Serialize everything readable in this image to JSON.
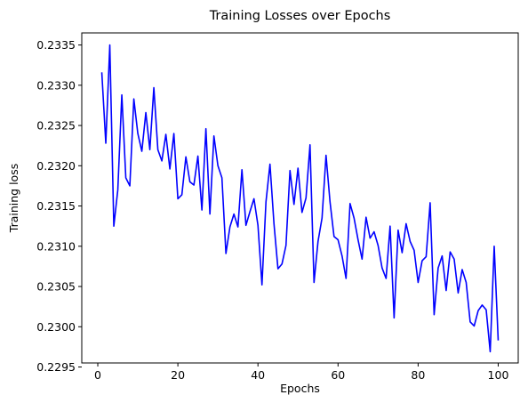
{
  "chart_data": {
    "type": "line",
    "title": "Training Losses over Epochs",
    "xlabel": "Epochs",
    "ylabel": "Training loss",
    "xlim": [
      -4,
      105
    ],
    "ylim": [
      0.22955,
      0.23365
    ],
    "xticks": [
      0,
      20,
      40,
      60,
      80,
      100
    ],
    "xtick_labels": [
      "0",
      "20",
      "40",
      "60",
      "80",
      "100"
    ],
    "yticks": [
      0.2295,
      0.23,
      0.2305,
      0.231,
      0.2315,
      0.232,
      0.2325,
      0.233,
      0.2335
    ],
    "ytick_labels": [
      "0.2295",
      "0.2300",
      "0.2305",
      "0.2310",
      "0.2315",
      "0.2320",
      "0.2325",
      "0.2330",
      "0.2335"
    ],
    "grid": false,
    "series": [
      {
        "name": "Training loss",
        "color": "#0000ff",
        "x": [
          1,
          2,
          3,
          4,
          5,
          6,
          7,
          8,
          9,
          10,
          11,
          12,
          13,
          14,
          15,
          16,
          17,
          18,
          19,
          20,
          21,
          22,
          23,
          24,
          25,
          26,
          27,
          28,
          29,
          30,
          31,
          32,
          33,
          34,
          35,
          36,
          37,
          38,
          39,
          40,
          41,
          42,
          43,
          44,
          45,
          46,
          47,
          48,
          49,
          50,
          51,
          52,
          53,
          54,
          55,
          56,
          57,
          58,
          59,
          60,
          61,
          62,
          63,
          64,
          65,
          66,
          67,
          68,
          69,
          70,
          71,
          72,
          73,
          74,
          75,
          76,
          77,
          78,
          79,
          80,
          81,
          82,
          83,
          84,
          85,
          86,
          87,
          88,
          89,
          90,
          91,
          92,
          93,
          94,
          95,
          96,
          97,
          98,
          99,
          100
        ],
        "values": [
          0.23316,
          0.23228,
          0.2335,
          0.23125,
          0.2317,
          0.23288,
          0.23185,
          0.23175,
          0.23283,
          0.2324,
          0.23218,
          0.23266,
          0.2322,
          0.23297,
          0.2322,
          0.23206,
          0.23239,
          0.23196,
          0.2324,
          0.23159,
          0.23164,
          0.23211,
          0.2318,
          0.23176,
          0.23212,
          0.23145,
          0.23246,
          0.2314,
          0.23237,
          0.232,
          0.23185,
          0.23091,
          0.23124,
          0.2314,
          0.23124,
          0.23195,
          0.23126,
          0.23143,
          0.23159,
          0.23126,
          0.23052,
          0.23155,
          0.23202,
          0.23128,
          0.23072,
          0.23078,
          0.23101,
          0.23194,
          0.23152,
          0.23197,
          0.23142,
          0.2316,
          0.23226,
          0.23055,
          0.23106,
          0.23135,
          0.23213,
          0.23155,
          0.23112,
          0.23108,
          0.23088,
          0.2306,
          0.23153,
          0.23135,
          0.23108,
          0.23084,
          0.23136,
          0.2311,
          0.23118,
          0.23101,
          0.23073,
          0.2306,
          0.23125,
          0.23011,
          0.2312,
          0.23092,
          0.23128,
          0.23106,
          0.23095,
          0.23055,
          0.23082,
          0.23087,
          0.23154,
          0.23015,
          0.23073,
          0.23088,
          0.23045,
          0.23093,
          0.23084,
          0.23042,
          0.23071,
          0.23055,
          0.23006,
          0.23001,
          0.2302,
          0.23027,
          0.23021,
          0.22969,
          0.231,
          0.22983
        ]
      }
    ]
  }
}
